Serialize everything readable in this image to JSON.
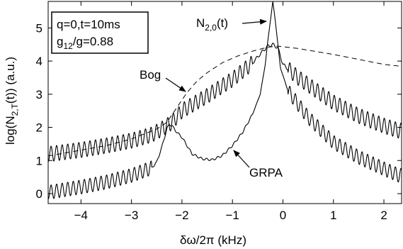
{
  "chart_data": {
    "type": "line",
    "xlabel": "δω/2π (kHz)",
    "ylabel_main": "log(N",
    "ylabel_sub": "2,T",
    "ylabel_tail": "(t))  (a.u.)",
    "xlim": [
      -4.65,
      2.35
    ],
    "ylim": [
      -0.3,
      5.8
    ],
    "xticks": [
      -4,
      -3,
      -2,
      -1,
      0,
      1,
      2
    ],
    "xtick_labels": [
      "−4",
      "−3",
      "−2",
      "−1",
      "0",
      "1",
      "2"
    ],
    "yticks": [
      0,
      1,
      2,
      3,
      4,
      5
    ],
    "ytick_labels": [
      "0",
      "1",
      "2",
      "3",
      "4",
      "5"
    ],
    "grid": false,
    "legend_box": {
      "line1": "q=0,t=10ms",
      "line2_main": "g",
      "line2_sub": "12",
      "line2_tail": "/g=0.88"
    },
    "annotations": {
      "peak_main": "N",
      "peak_sub": "2,0",
      "peak_tail": "(t)",
      "bog": "Bog",
      "grpa": "GRPA"
    },
    "series": [
      {
        "style": "solid",
        "x": [
          -4.6,
          -4.0,
          -3.5,
          -3.0,
          -2.6,
          -2.4,
          -2.2,
          -2.0,
          -1.5,
          -1.0,
          -0.6,
          -0.4,
          -0.3,
          -0.2,
          -0.1,
          0.0,
          0.3,
          1.0,
          1.5,
          2.0,
          2.3
        ],
        "y": [
          1.2,
          1.32,
          1.45,
          1.6,
          1.78,
          1.95,
          2.15,
          2.5,
          2.95,
          3.45,
          3.95,
          4.3,
          4.45,
          4.5,
          4.4,
          3.9,
          3.5,
          2.75,
          2.35,
          2.05,
          1.9
        ],
        "oscillation_amp": 0.23,
        "oscillation_period": 0.11
      },
      {
        "style": "solid",
        "x": [
          -4.6,
          -4.0,
          -3.5,
          -3.0,
          -2.6,
          -2.5,
          -2.4,
          -2.3,
          -2.25,
          -2.2,
          -2.1,
          -2.0,
          -1.9,
          -1.8,
          -1.6,
          -1.4,
          -1.2,
          -1.0,
          -0.8,
          -0.6,
          -0.45,
          -0.35,
          -0.3,
          -0.25,
          -0.2,
          -0.15,
          -0.05,
          0.1,
          0.5,
          1.0,
          1.5,
          2.0,
          2.3
        ],
        "y": [
          0.05,
          0.2,
          0.35,
          0.55,
          0.78,
          0.95,
          1.4,
          1.95,
          2.1,
          2.05,
          1.85,
          1.7,
          1.45,
          1.2,
          1.05,
          1.02,
          1.15,
          1.45,
          1.85,
          2.4,
          3.0,
          3.9,
          4.6,
          5.2,
          5.8,
          5.2,
          3.8,
          3.1,
          2.3,
          1.55,
          1.1,
          0.75,
          0.55
        ],
        "oscillation_amp": 0.21,
        "oscillation_period": 0.11,
        "oscillation_damp_range": [
          -2.6,
          0.1
        ]
      },
      {
        "style": "dashed",
        "x": [
          -4.6,
          -3.5,
          -3.0,
          -2.5,
          -2.3,
          -2.1,
          -1.9,
          -1.7,
          -1.5,
          -1.2,
          -0.9,
          -0.6,
          -0.3,
          -0.1,
          0.3,
          1.0,
          1.5,
          2.0,
          2.3
        ],
        "y": [
          1.15,
          1.45,
          1.65,
          1.95,
          2.15,
          2.6,
          3.05,
          3.4,
          3.65,
          3.95,
          4.15,
          4.3,
          4.42,
          4.45,
          4.38,
          4.2,
          4.05,
          3.9,
          3.85
        ]
      }
    ]
  }
}
